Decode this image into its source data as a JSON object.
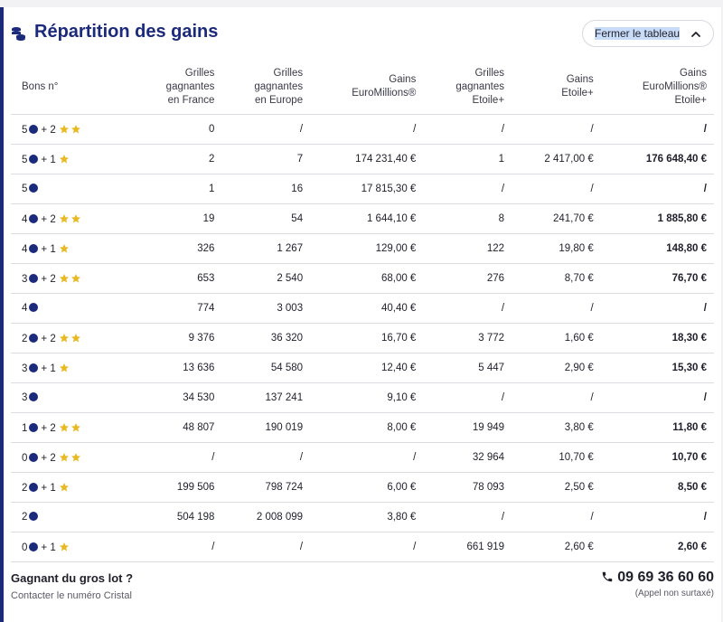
{
  "header": {
    "title": "Répartition des gains",
    "toggle_label": "Fermer le tableau"
  },
  "table": {
    "columns": [
      [
        "Bons n°"
      ],
      [
        "Grilles",
        "gagnantes",
        "en France"
      ],
      [
        "Grilles",
        "gagnantes",
        "en Europe"
      ],
      [
        "Gains",
        "EuroMillions®"
      ],
      [
        "Grilles",
        "gagnantes",
        "Etoile+"
      ],
      [
        "Gains",
        "Etoile+"
      ],
      [
        "Gains",
        "EuroMillions®",
        "Etoile+"
      ]
    ],
    "rows": [
      {
        "balls": "5",
        "stars_sep": "+ 2",
        "stars": 2,
        "france": "0",
        "europe": "/",
        "gains_em": "/",
        "grilles_etoile": "/",
        "gains_etoile": "/",
        "total": "/"
      },
      {
        "balls": "5",
        "stars_sep": "+ 1",
        "stars": 1,
        "france": "2",
        "europe": "7",
        "gains_em": "174 231,40 €",
        "grilles_etoile": "1",
        "gains_etoile": "2 417,00 €",
        "total": "176 648,40 €"
      },
      {
        "balls": "5",
        "stars_sep": "",
        "stars": 0,
        "france": "1",
        "europe": "16",
        "gains_em": "17 815,30 €",
        "grilles_etoile": "/",
        "gains_etoile": "/",
        "total": "/"
      },
      {
        "balls": "4",
        "stars_sep": "+ 2",
        "stars": 2,
        "france": "19",
        "europe": "54",
        "gains_em": "1 644,10 €",
        "grilles_etoile": "8",
        "gains_etoile": "241,70 €",
        "total": "1 885,80 €"
      },
      {
        "balls": "4",
        "stars_sep": "+ 1",
        "stars": 1,
        "france": "326",
        "europe": "1 267",
        "gains_em": "129,00 €",
        "grilles_etoile": "122",
        "gains_etoile": "19,80 €",
        "total": "148,80 €"
      },
      {
        "balls": "3",
        "stars_sep": "+ 2",
        "stars": 2,
        "france": "653",
        "europe": "2 540",
        "gains_em": "68,00 €",
        "grilles_etoile": "276",
        "gains_etoile": "8,70 €",
        "total": "76,70 €"
      },
      {
        "balls": "4",
        "stars_sep": "",
        "stars": 0,
        "france": "774",
        "europe": "3 003",
        "gains_em": "40,40 €",
        "grilles_etoile": "/",
        "gains_etoile": "/",
        "total": "/"
      },
      {
        "balls": "2",
        "stars_sep": "+ 2",
        "stars": 2,
        "france": "9 376",
        "europe": "36 320",
        "gains_em": "16,70 €",
        "grilles_etoile": "3 772",
        "gains_etoile": "1,60 €",
        "total": "18,30 €"
      },
      {
        "balls": "3",
        "stars_sep": "+ 1",
        "stars": 1,
        "france": "13 636",
        "europe": "54 580",
        "gains_em": "12,40 €",
        "grilles_etoile": "5 447",
        "gains_etoile": "2,90 €",
        "total": "15,30 €"
      },
      {
        "balls": "3",
        "stars_sep": "",
        "stars": 0,
        "france": "34 530",
        "europe": "137 241",
        "gains_em": "9,10 €",
        "grilles_etoile": "/",
        "gains_etoile": "/",
        "total": "/"
      },
      {
        "balls": "1",
        "stars_sep": "+ 2",
        "stars": 2,
        "france": "48 807",
        "europe": "190 019",
        "gains_em": "8,00 €",
        "grilles_etoile": "19 949",
        "gains_etoile": "3,80 €",
        "total": "11,80 €"
      },
      {
        "balls": "0",
        "stars_sep": "+ 2",
        "stars": 2,
        "france": "/",
        "europe": "/",
        "gains_em": "/",
        "grilles_etoile": "32 964",
        "gains_etoile": "10,70 €",
        "total": "10,70 €"
      },
      {
        "balls": "2",
        "stars_sep": "+ 1",
        "stars": 1,
        "france": "199 506",
        "europe": "798 724",
        "gains_em": "6,00 €",
        "grilles_etoile": "78 093",
        "gains_etoile": "2,50 €",
        "total": "8,50 €"
      },
      {
        "balls": "2",
        "stars_sep": "",
        "stars": 0,
        "france": "504 198",
        "europe": "2 008 099",
        "gains_em": "3,80 €",
        "grilles_etoile": "/",
        "gains_etoile": "/",
        "total": "/"
      },
      {
        "balls": "0",
        "stars_sep": "+ 1",
        "stars": 1,
        "france": "/",
        "europe": "/",
        "gains_em": "/",
        "grilles_etoile": "661 919",
        "gains_etoile": "2,60 €",
        "total": "2,60 €"
      }
    ]
  },
  "footer": {
    "jackpot_title": "Gagnant du gros lot ?",
    "jackpot_sub": "Contacter le numéro Cristal",
    "phone": "09 69 36 60 60",
    "phone_note": "(Appel non surtaxé)"
  },
  "colors": {
    "brand_navy": "#1b2a7a",
    "star_gold": "#e8b923",
    "selection_highlight": "#c9dcf7"
  },
  "icons": [
    "coins-icon",
    "chevron-up-icon",
    "ball-icon",
    "star-icon",
    "phone-icon"
  ]
}
